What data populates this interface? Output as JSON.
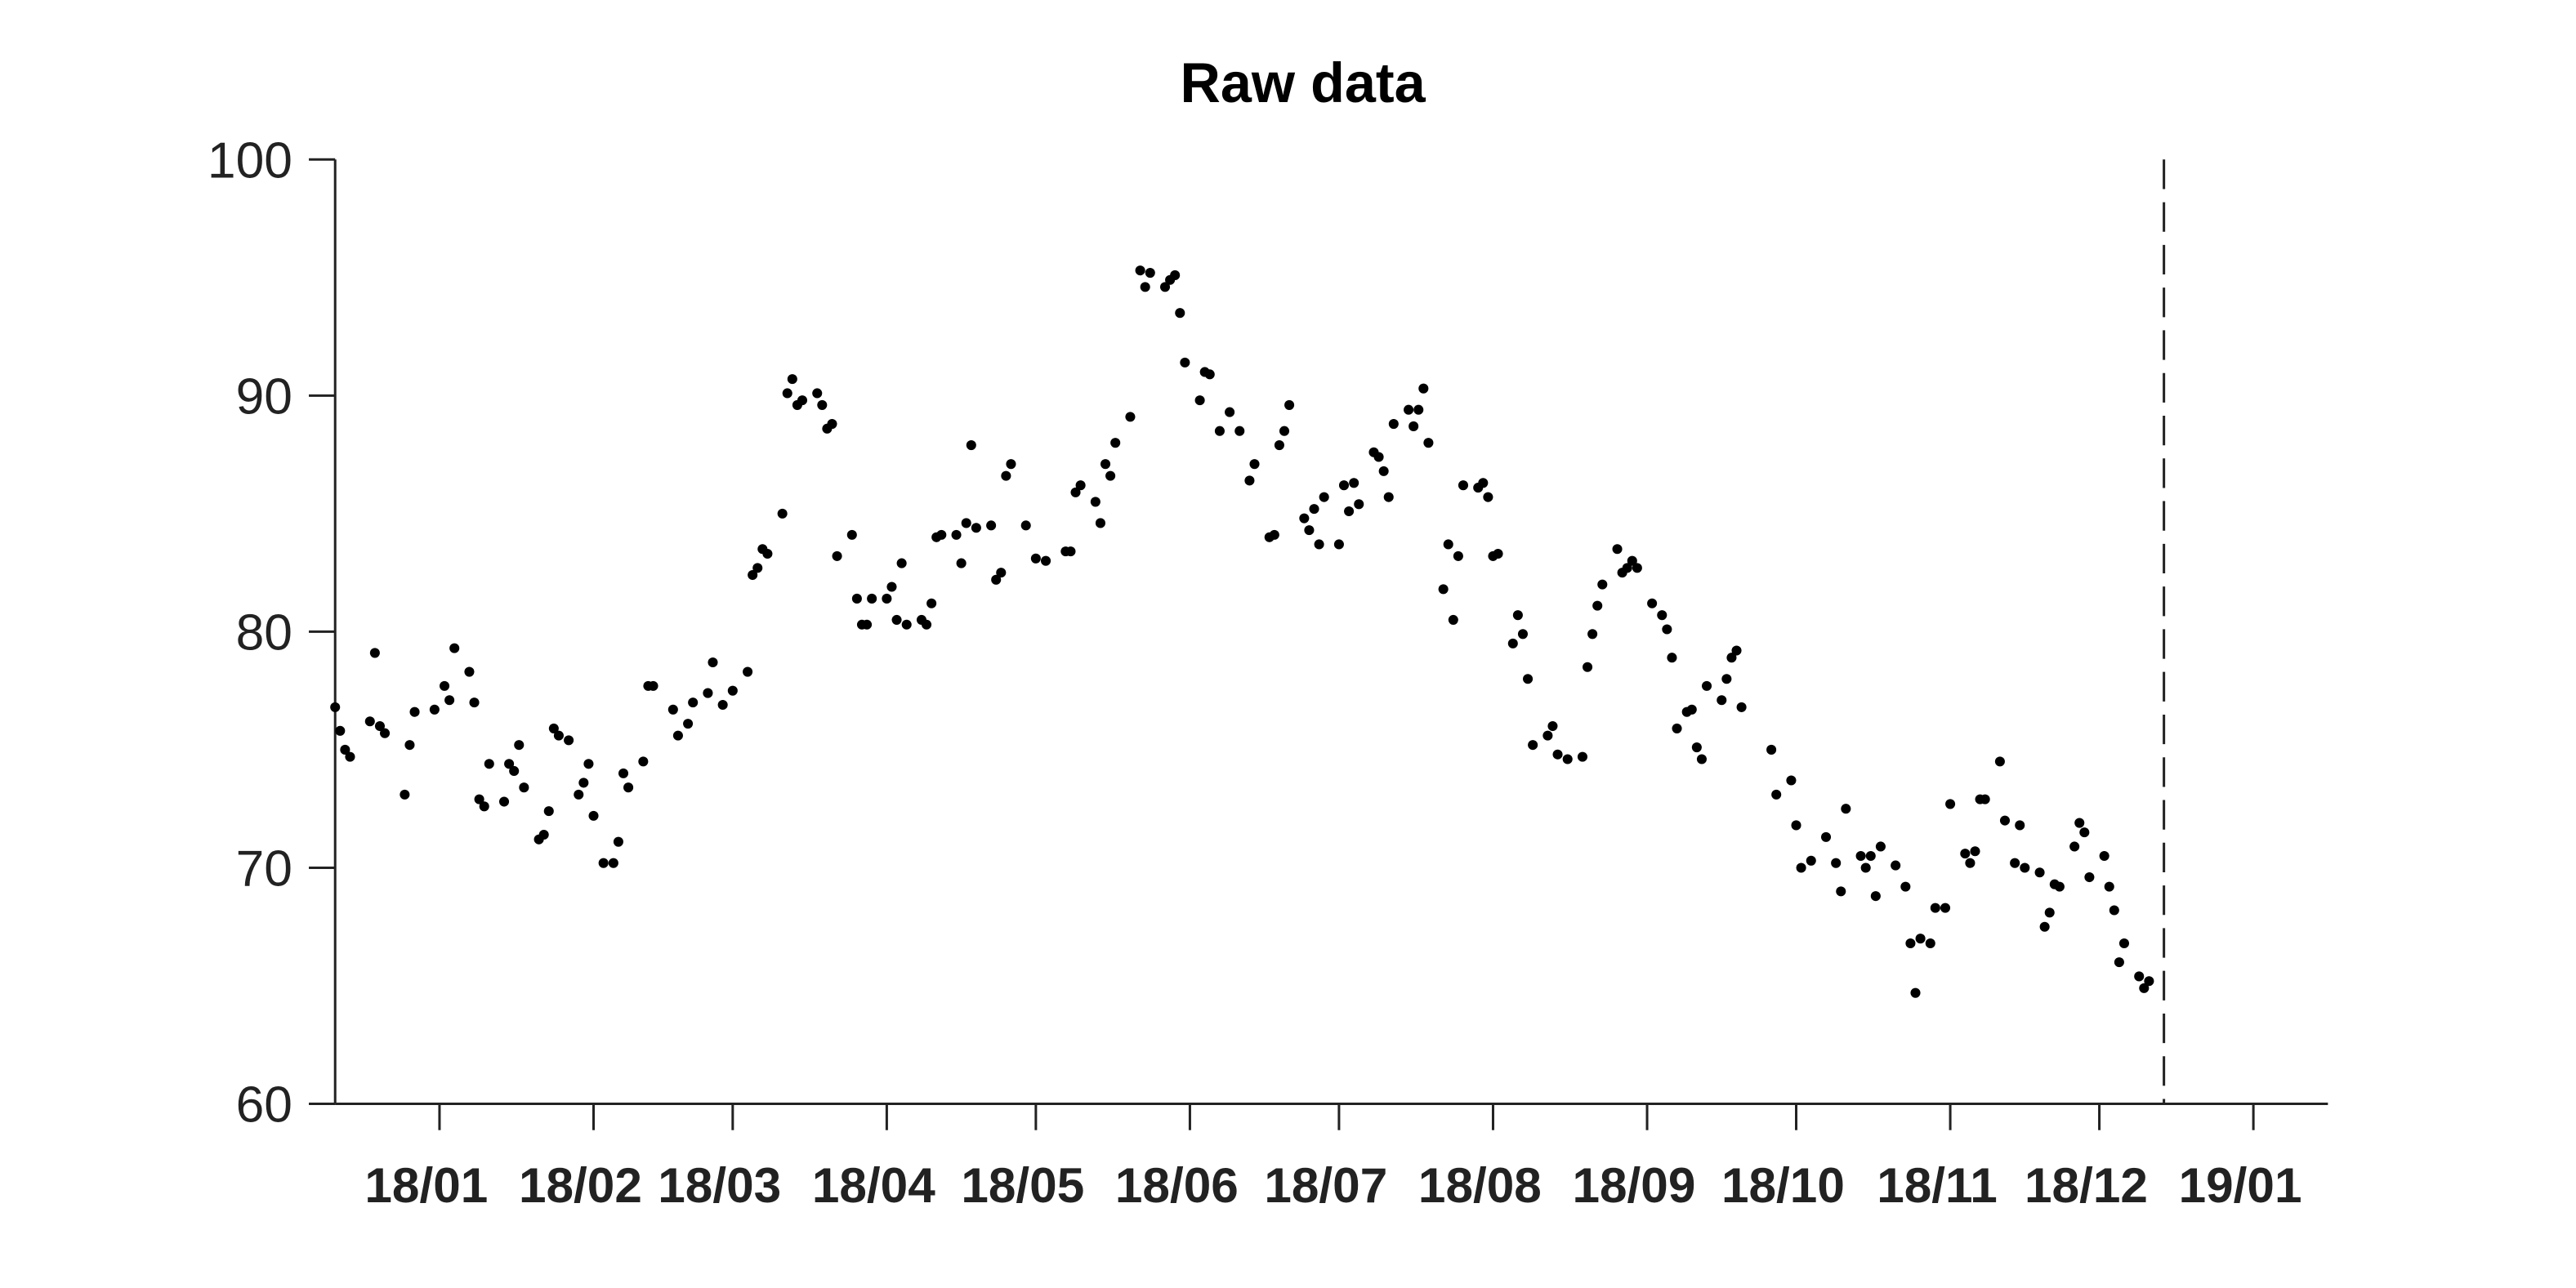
{
  "chart_data": {
    "type": "scatter",
    "title": "Raw data",
    "color": "#000000",
    "xlim": [
      -21,
      380
    ],
    "xticks": [
      {
        "value": 0,
        "label": "18/01"
      },
      {
        "value": 31,
        "label": "18/02"
      },
      {
        "value": 59,
        "label": "18/03"
      },
      {
        "value": 90,
        "label": "18/04"
      },
      {
        "value": 120,
        "label": "18/05"
      },
      {
        "value": 151,
        "label": "18/06"
      },
      {
        "value": 181,
        "label": "18/07"
      },
      {
        "value": 212,
        "label": "18/08"
      },
      {
        "value": 243,
        "label": "18/09"
      },
      {
        "value": 273,
        "label": "18/10"
      },
      {
        "value": 304,
        "label": "18/11"
      },
      {
        "value": 334,
        "label": "18/12"
      },
      {
        "value": 365,
        "label": "19/01"
      }
    ],
    "ylim": [
      60,
      100
    ],
    "yticks": [
      60,
      70,
      80,
      90,
      100
    ],
    "vline": {
      "x": 347,
      "style": "dashed"
    },
    "x": [
      -21,
      -20,
      -19,
      -18,
      -14,
      -13,
      -12,
      -11,
      -7,
      -6,
      -5,
      -1,
      1,
      2,
      3,
      6,
      7,
      8,
      9,
      10,
      13,
      14,
      15,
      16,
      17,
      20,
      21,
      22,
      23,
      24,
      26,
      28,
      29,
      30,
      31,
      33,
      35,
      36,
      37,
      38,
      41,
      42,
      43,
      47,
      48,
      50,
      51,
      54,
      55,
      57,
      59,
      62,
      63,
      64,
      65,
      66,
      69,
      70,
      71,
      72,
      73,
      76,
      77,
      78,
      79,
      80,
      83,
      84,
      85,
      86,
      87,
      90,
      91,
      92,
      93,
      94,
      97,
      98,
      99,
      100,
      101,
      104,
      105,
      106,
      107,
      108,
      111,
      112,
      113,
      114,
      115,
      118,
      120,
      122,
      126,
      127,
      128,
      129,
      132,
      133,
      134,
      135,
      136,
      139,
      141,
      142,
      143,
      146,
      147,
      148,
      149,
      150,
      153,
      154,
      155,
      157,
      159,
      161,
      163,
      164,
      167,
      168,
      169,
      170,
      171,
      174,
      175,
      176,
      177,
      178,
      181,
      182,
      183,
      184,
      185,
      188,
      189,
      190,
      191,
      192,
      195,
      196,
      197,
      198,
      199,
      202,
      203,
      204,
      205,
      206,
      209,
      210,
      211,
      212,
      213,
      216,
      217,
      218,
      219,
      220,
      223,
      224,
      225,
      227,
      230,
      231,
      232,
      233,
      234,
      237,
      238,
      239,
      240,
      241,
      244,
      246,
      247,
      248,
      249,
      251,
      252,
      253,
      254,
      255,
      258,
      259,
      260,
      261,
      262,
      268,
      269,
      272,
      273,
      274,
      276,
      279,
      281,
      282,
      283,
      286,
      287,
      288,
      289,
      290,
      293,
      295,
      296,
      297,
      298,
      300,
      301,
      303,
      304,
      307,
      308,
      309,
      310,
      311,
      314,
      315,
      317,
      318,
      319,
      322,
      323,
      324,
      325,
      326,
      329,
      330,
      331,
      332,
      335,
      336,
      337,
      338,
      339,
      342,
      343,
      344
    ],
    "values": [
      76.8,
      75.8,
      75.0,
      74.7,
      76.2,
      79.1,
      76.0,
      75.7,
      73.1,
      75.2,
      76.6,
      76.7,
      77.7,
      77.1,
      79.3,
      78.3,
      77.0,
      72.9,
      72.6,
      74.4,
      72.8,
      74.4,
      74.1,
      75.2,
      73.4,
      71.2,
      71.4,
      72.4,
      75.9,
      75.6,
      75.4,
      73.1,
      73.6,
      74.4,
      72.2,
      70.2,
      70.2,
      71.1,
      74.0,
      73.4,
      74.5,
      77.7,
      77.7,
      76.7,
      75.6,
      76.1,
      77.0,
      77.4,
      78.7,
      76.9,
      77.5,
      78.3,
      82.4,
      82.7,
      83.5,
      83.3,
      85.0,
      90.1,
      90.7,
      89.6,
      89.8,
      90.1,
      89.6,
      88.6,
      88.8,
      83.2,
      84.1,
      81.4,
      80.3,
      80.3,
      81.4,
      81.4,
      81.9,
      80.5,
      82.9,
      80.3,
      80.5,
      80.3,
      81.2,
      84.0,
      84.1,
      84.1,
      82.9,
      84.6,
      87.9,
      84.4,
      84.5,
      82.2,
      82.5,
      86.6,
      87.1,
      84.5,
      83.1,
      83.0,
      83.4,
      83.4,
      85.9,
      86.2,
      85.5,
      84.6,
      87.1,
      86.6,
      88.0,
      89.1,
      95.3,
      94.6,
      95.2,
      94.6,
      94.9,
      95.1,
      93.5,
      91.4,
      89.8,
      91.0,
      90.9,
      88.5,
      89.3,
      88.5,
      86.4,
      87.1,
      84.0,
      84.1,
      87.9,
      88.5,
      89.6,
      84.8,
      84.3,
      85.2,
      83.7,
      85.7,
      83.7,
      86.2,
      85.1,
      86.3,
      85.4,
      87.6,
      87.4,
      86.8,
      85.7,
      88.8,
      89.4,
      88.7,
      89.4,
      90.3,
      88.0,
      81.8,
      83.7,
      80.5,
      83.2,
      86.2,
      86.1,
      86.3,
      85.7,
      83.2,
      83.3,
      79.5,
      80.7,
      79.9,
      78.0,
      75.2,
      75.6,
      76.0,
      74.8,
      74.6,
      74.7,
      78.5,
      79.9,
      81.1,
      82.0,
      83.5,
      82.5,
      82.7,
      83.0,
      82.7,
      81.2,
      80.7,
      80.1,
      78.9,
      75.9,
      76.6,
      76.7,
      75.1,
      74.6,
      77.7,
      77.1,
      78.0,
      78.9,
      79.2,
      76.8,
      75.0,
      73.1,
      73.7,
      71.8,
      70.0,
      70.3,
      71.3,
      70.2,
      69.0,
      72.5,
      70.5,
      70.0,
      70.5,
      68.8,
      70.9,
      70.1,
      69.2,
      66.8,
      64.7,
      67.0,
      66.8,
      68.3,
      68.3,
      72.7,
      70.6,
      70.2,
      70.7,
      72.9,
      72.9,
      74.5,
      72.0,
      70.2,
      71.8,
      70.0,
      69.8,
      67.5,
      68.1,
      69.3,
      69.2,
      70.9,
      71.9,
      71.5,
      69.6,
      70.5,
      69.2,
      68.2,
      66.0,
      66.8,
      65.4,
      64.9,
      65.2
    ]
  }
}
